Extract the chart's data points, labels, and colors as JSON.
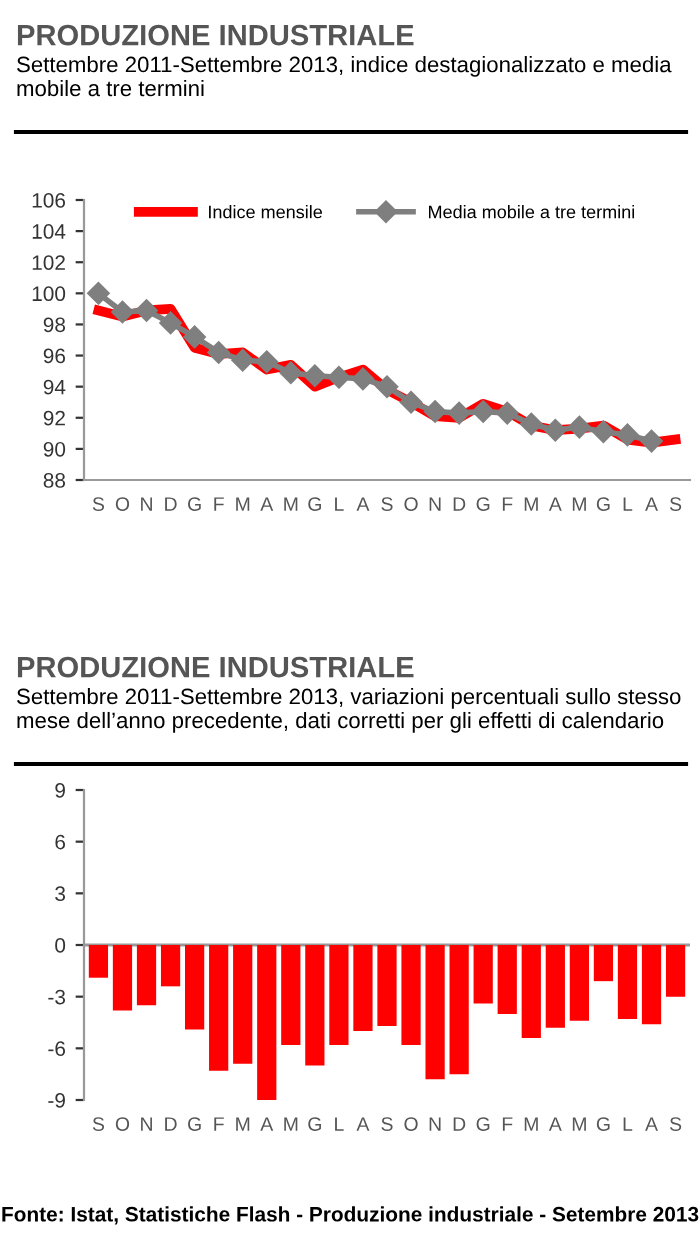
{
  "chart_data": [
    {
      "type": "line",
      "title": "PRODUZIONE INDUSTRIALE",
      "subtitle": "Settembre 2011-Settembre 2013, indice destagionalizzato e media mobile a tre termini",
      "categories": [
        "S",
        "O",
        "N",
        "D",
        "G",
        "F",
        "M",
        "A",
        "M",
        "G",
        "L",
        "A",
        "S",
        "O",
        "N",
        "D",
        "G",
        "F",
        "M",
        "A",
        "M",
        "G",
        "L",
        "A",
        "S"
      ],
      "series": [
        {
          "name": "Indice mensile",
          "color": "#ff0000",
          "marker": "none",
          "values": [
            98.9,
            98.5,
            98.9,
            99.0,
            96.5,
            96.1,
            96.2,
            95.1,
            95.4,
            94.0,
            94.6,
            95.1,
            93.8,
            93.0,
            92.1,
            92.0,
            92.9,
            92.4,
            91.5,
            91.2,
            91.3,
            91.5,
            90.6,
            90.4,
            90.6
          ]
        },
        {
          "name": "Media mobile a tre termini",
          "color": "#7f7f7f",
          "marker": "diamond",
          "values": [
            100.0,
            98.8,
            98.9,
            98.1,
            97.2,
            96.2,
            95.7,
            95.6,
            94.9,
            94.7,
            94.6,
            94.5,
            94.0,
            93.0,
            92.4,
            92.3,
            92.4,
            92.3,
            91.6,
            91.2,
            91.4,
            91.1,
            90.9,
            90.5,
            null
          ]
        }
      ],
      "ylim": [
        88,
        106
      ],
      "yticks": [
        88,
        90,
        92,
        94,
        96,
        98,
        100,
        102,
        104,
        106
      ],
      "grid": false,
      "legend": "top"
    },
    {
      "type": "bar",
      "title": "PRODUZIONE INDUSTRIALE",
      "subtitle": "Settembre 2011-Settembre 2013, variazioni percentuali sullo stesso mese dell’anno precedente, dati corretti per gli effetti di calendario",
      "categories": [
        "S",
        "O",
        "N",
        "D",
        "G",
        "F",
        "M",
        "A",
        "M",
        "G",
        "L",
        "A",
        "S",
        "O",
        "N",
        "D",
        "G",
        "F",
        "M",
        "A",
        "M",
        "G",
        "L",
        "A",
        "S"
      ],
      "values": [
        -1.9,
        -3.8,
        -3.5,
        -2.4,
        -4.9,
        -7.3,
        -6.9,
        -9.0,
        -5.8,
        -7.0,
        -5.8,
        -5.0,
        -4.7,
        -5.8,
        -7.8,
        -7.5,
        -3.4,
        -4.0,
        -5.4,
        -4.8,
        -4.4,
        -2.1,
        -4.3,
        -4.6,
        -3.0
      ],
      "color": "#ff0000",
      "ylim": [
        -9,
        9
      ],
      "yticks": [
        -9,
        -6,
        -3,
        0,
        3,
        6,
        9
      ],
      "grid": false,
      "ref_lines": [
        {
          "axis": "y",
          "value": 0,
          "color": "#999999"
        }
      ],
      "annotations": [
        "Fonte: Istat, Statistiche Flash - Produzione industriale - Setembre 2013"
      ]
    }
  ]
}
